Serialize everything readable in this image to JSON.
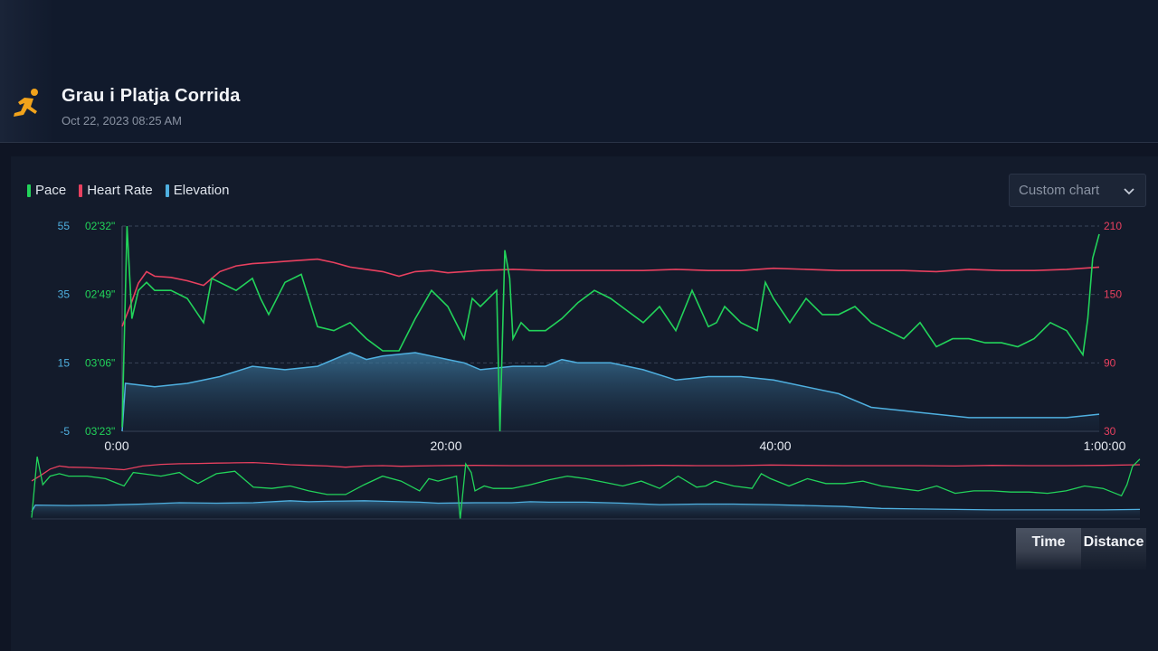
{
  "activity": {
    "icon": "running-person-icon",
    "title": "Grau i Platja Corrida",
    "datetime": "Oct 22, 2023 08:25 AM"
  },
  "legend": [
    {
      "label": "Pace",
      "color": "#22d35a"
    },
    {
      "label": "Heart Rate",
      "color": "#e8405f"
    },
    {
      "label": "Elevation",
      "color": "#4fb0e0"
    }
  ],
  "custom_chart_label": "Custom chart",
  "toggle": {
    "time_label": "Time",
    "distance_label": "Distance",
    "active": "Time"
  },
  "chart_data": {
    "type": "line",
    "grid": true,
    "x_ticks": [
      "0:00",
      "20:00",
      "40:00",
      "1:00:00"
    ],
    "x_range_minutes": [
      0,
      60
    ],
    "elevation_axis": {
      "ticks": [
        "55",
        "35",
        "15",
        "-5"
      ],
      "range": [
        -5,
        55
      ],
      "color": "#4fb0e0"
    },
    "pace_axis": {
      "ticks": [
        "02'32\"",
        "02'49\"",
        "03'06\"",
        "03'23\""
      ],
      "range_seconds": [
        152,
        203
      ],
      "color": "#22d35a"
    },
    "heart_rate_axis": {
      "ticks": [
        "210",
        "150",
        "90",
        "30"
      ],
      "range": [
        30,
        210
      ],
      "color": "#e8405f"
    },
    "series": [
      {
        "name": "Pace",
        "color": "#22d35a",
        "x": [
          0,
          0.3,
          0.6,
          1,
          1.5,
          2,
          3,
          4,
          5,
          5.5,
          6,
          7,
          8,
          8.5,
          9,
          10,
          11,
          12,
          13,
          14,
          15,
          16,
          17,
          18,
          19,
          20,
          21,
          21.5,
          22,
          23,
          23.2,
          23.5,
          23.8,
          24,
          24.5,
          25,
          26,
          27,
          28,
          29,
          30,
          31,
          32,
          33,
          34,
          35,
          36,
          36.5,
          37,
          38,
          39,
          39.5,
          40,
          41,
          42,
          43,
          44,
          45,
          46,
          47,
          48,
          49,
          50,
          51,
          52,
          53,
          54,
          55,
          56,
          57,
          58,
          59,
          59.3,
          59.6,
          60
        ],
        "values": [
          202,
          152,
          175,
          168,
          166,
          168,
          168,
          170,
          176,
          165,
          166,
          168,
          165,
          170,
          174,
          166,
          164,
          177,
          178,
          176,
          180,
          183,
          183,
          175,
          168,
          172,
          180,
          170,
          172,
          168,
          203,
          158,
          165,
          180,
          176,
          178,
          178,
          175,
          171,
          168,
          170,
          173,
          176,
          172,
          178,
          168,
          177,
          176,
          172,
          176,
          178,
          166,
          170,
          176,
          170,
          174,
          174,
          172,
          176,
          178,
          180,
          176,
          182,
          180,
          180,
          181,
          181,
          182,
          180,
          176,
          178,
          184,
          175,
          160,
          154
        ]
      },
      {
        "name": "Heart Rate",
        "color": "#e8405f",
        "x": [
          0,
          0.5,
          1,
          1.5,
          2,
          3,
          4,
          5,
          6,
          7,
          8,
          9,
          10,
          11,
          12,
          13,
          14,
          15,
          16,
          17,
          18,
          19,
          20,
          22,
          24,
          26,
          28,
          30,
          32,
          34,
          36,
          38,
          40,
          42,
          44,
          46,
          48,
          50,
          52,
          54,
          56,
          58,
          60
        ],
        "values": [
          122,
          140,
          160,
          170,
          166,
          165,
          162,
          158,
          170,
          175,
          177,
          178,
          179,
          180,
          181,
          178,
          174,
          172,
          170,
          166,
          170,
          171,
          169,
          171,
          172,
          171,
          171,
          171,
          171,
          172,
          171,
          171,
          173,
          172,
          171,
          171,
          171,
          170,
          172,
          171,
          171,
          172,
          174
        ]
      },
      {
        "name": "Elevation",
        "color": "#4fb0e0",
        "x": [
          0,
          0.2,
          2,
          4,
          6,
          8,
          10,
          12,
          14,
          15,
          16,
          18,
          19,
          20,
          21,
          22,
          24,
          26,
          27,
          28,
          30,
          32,
          34,
          36,
          38,
          40,
          42,
          44,
          45,
          46,
          48,
          50,
          52,
          54,
          56,
          58,
          60
        ],
        "values": [
          -5,
          9,
          8,
          9,
          11,
          14,
          13,
          14,
          18,
          16,
          17,
          18,
          17,
          16,
          15,
          13,
          14,
          14,
          16,
          15,
          15,
          13,
          10,
          11,
          11,
          10,
          8,
          6,
          4,
          2,
          1,
          0,
          -1,
          -1,
          -1,
          -1,
          0
        ]
      }
    ]
  }
}
